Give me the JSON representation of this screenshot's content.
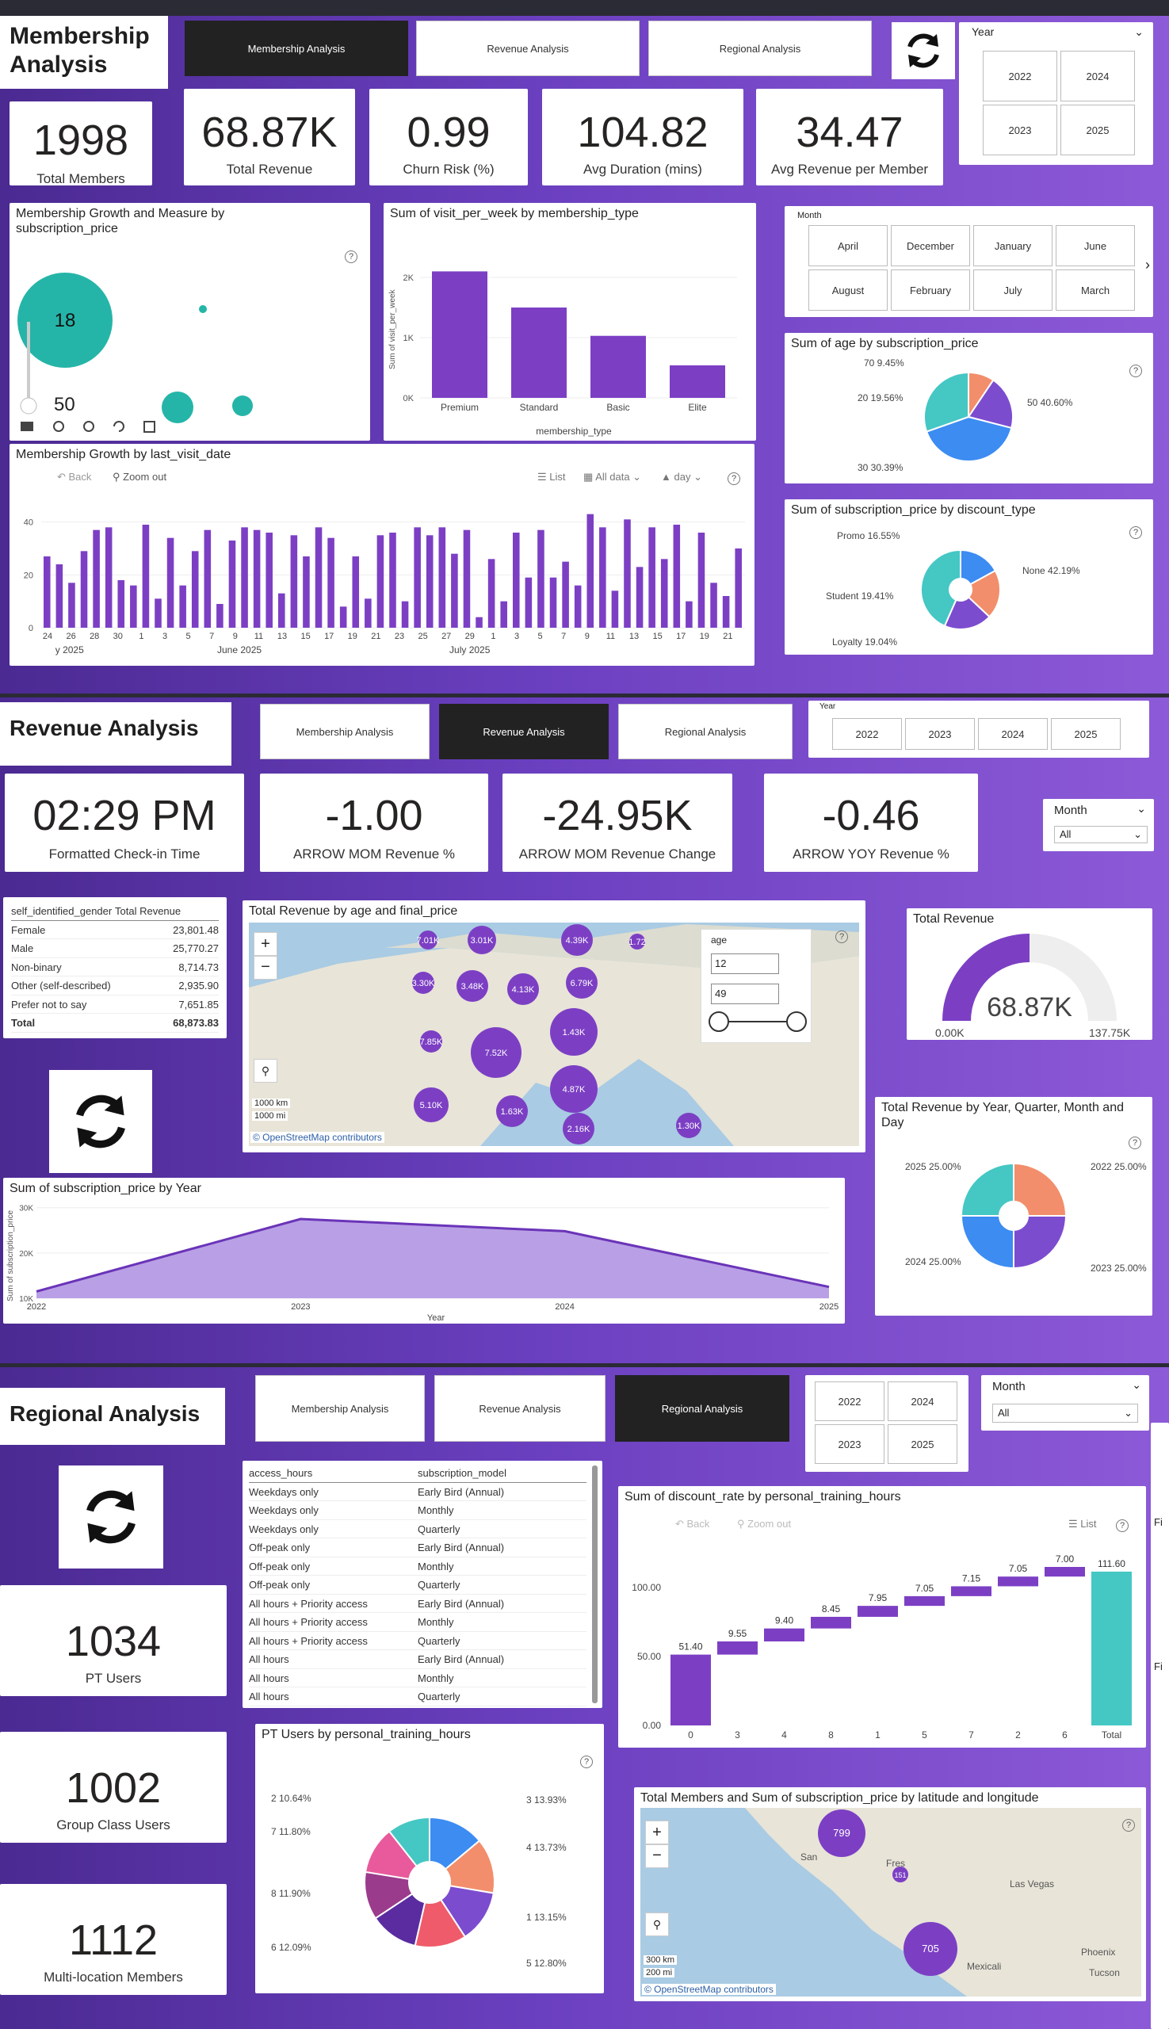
{
  "membership": {
    "title": "Membership Analysis",
    "tabs": [
      "Membership Analysis",
      "Revenue Analysis",
      "Regional Analysis"
    ],
    "year_label": "Year",
    "years": [
      "2022",
      "2024",
      "2023",
      "2025"
    ],
    "kpis": [
      {
        "value": "1998",
        "label": "Total Members"
      },
      {
        "value": "68.87K",
        "label": "Total Revenue"
      },
      {
        "value": "0.99",
        "label": "Churn Risk (%)"
      },
      {
        "value": "104.82",
        "label": "Avg Duration (mins)"
      },
      {
        "value": "34.47",
        "label": "Avg Revenue per Member"
      }
    ],
    "growth_measure": {
      "title": "Membership Growth and Measure by subscription_price",
      "big_value": "18",
      "small_value": "50"
    },
    "visits": {
      "title": "Sum of visit_per_week by membership_type",
      "ylabel": "Sum of visit_per_week",
      "xlabel": "membership_type"
    },
    "month_label": "Month",
    "months": [
      "April",
      "December",
      "January",
      "June",
      "August",
      "February",
      "July",
      "March"
    ],
    "age_pie": {
      "title": "Sum of age by subscription_price",
      "labels": [
        "70 9.45%",
        "20 19.56%",
        "50 40.60%",
        "30 30.39%"
      ]
    },
    "discount_donut": {
      "title": "Sum of subscription_price by discount_type",
      "labels": [
        "Promo 16.55%",
        "Student 19.41%",
        "Loyalty 19.04%",
        "None 42.19%"
      ]
    },
    "timeline": {
      "title": "Membership Growth by last_visit_date",
      "back": "Back",
      "zoom_out": "Zoom out",
      "list": "List",
      "all_data": "All data",
      "day": "day",
      "y_ticks": [
        "40",
        "20",
        "0"
      ],
      "x_ticks": [
        "24",
        "26",
        "28",
        "30",
        "1",
        "3",
        "5",
        "7",
        "9",
        "11",
        "13",
        "15",
        "17",
        "19",
        "21",
        "23",
        "25",
        "27",
        "29",
        "1",
        "3",
        "5",
        "7",
        "9",
        "11",
        "13",
        "15",
        "17",
        "19",
        "21"
      ],
      "month_labels": [
        "y 2025",
        "June 2025",
        "July 2025"
      ]
    }
  },
  "revenue": {
    "title": "Revenue Analysis",
    "tabs": [
      "Membership Analysis",
      "Revenue Analysis",
      "Regional Analysis"
    ],
    "year_label": "Year",
    "years": [
      "2022",
      "2023",
      "2024",
      "2025"
    ],
    "kpis": [
      {
        "value": "02:29 PM",
        "label": "Formatted Check-in Time"
      },
      {
        "value": "-1.00",
        "label": "ARROW MOM Revenue %"
      },
      {
        "value": "-24.95K",
        "label": "ARROW MOM Revenue Change"
      },
      {
        "value": "-0.46",
        "label": "ARROW YOY Revenue %"
      }
    ],
    "month_label": "Month",
    "month_value": "All",
    "gender_table": {
      "headers": [
        "self_identified_gender",
        "Total Revenue"
      ],
      "rows": [
        [
          "Female",
          "23,801.48"
        ],
        [
          "Male",
          "25,770.27"
        ],
        [
          "Non-binary",
          "8,714.73"
        ],
        [
          "Other (self-described)",
          "2,935.90"
        ],
        [
          "Prefer not to say",
          "7,651.85"
        ],
        [
          "Total",
          "68,873.83"
        ]
      ]
    },
    "map": {
      "title": "Total Revenue by age and final_price",
      "age_label": "age",
      "age_min": "12",
      "age_max": "49",
      "bubbles": [
        "7.01K",
        "3.01K",
        "4.39K",
        "1.72",
        "3.30K",
        "3.48K",
        "4.13K",
        "6.79K",
        "1.43K",
        "7.85K",
        "7.52K",
        "4.87K",
        "5.10K",
        "1.63K",
        "2.16K",
        "1.30K"
      ],
      "scale1": "1000 km",
      "scale2": "1000 mi",
      "credit": "© OpenStreetMap contributors"
    },
    "gauge": {
      "title": "Total Revenue",
      "value": "68.87K",
      "min": "0.00K",
      "max": "137.75K",
      "fraction": 0.5
    },
    "area": {
      "title": "Sum of subscription_price by Year",
      "ylabel": "Sum of subscription_price",
      "xlabel": "Year",
      "y_ticks": [
        "30K",
        "20K",
        "10K"
      ],
      "x": [
        "2022",
        "2023",
        "2024",
        "2025"
      ],
      "values": [
        11500,
        27500,
        24800,
        12500
      ]
    },
    "quarter_donut": {
      "title": "Total Revenue by Year, Quarter, Month and Day",
      "labels": [
        "2025 25.00%",
        "2022 25.00%",
        "2024 25.00%",
        "2023 25.00%"
      ]
    }
  },
  "regional": {
    "title": "Regional Analysis",
    "tabs": [
      "Membership Analysis",
      "Revenue Analysis",
      "Regional Analysis"
    ],
    "years": [
      "2022",
      "2024",
      "2023",
      "2025"
    ],
    "month_label": "Month",
    "month_value": "All",
    "kpis": [
      {
        "value": "1034",
        "label": "PT Users"
      },
      {
        "value": "1002",
        "label": "Group Class Users"
      },
      {
        "value": "1112",
        "label": "Multi-location Members"
      }
    ],
    "access_table": {
      "headers": [
        "access_hours",
        "subscription_model"
      ],
      "rows": [
        [
          "Weekdays only",
          "Early Bird (Annual)"
        ],
        [
          "Weekdays only",
          "Monthly"
        ],
        [
          "Weekdays only",
          "Quarterly"
        ],
        [
          "Off-peak only",
          "Early Bird (Annual)"
        ],
        [
          "Off-peak only",
          "Monthly"
        ],
        [
          "Off-peak only",
          "Quarterly"
        ],
        [
          "All hours + Priority access",
          "Early Bird (Annual)"
        ],
        [
          "All hours + Priority access",
          "Monthly"
        ],
        [
          "All hours + Priority access",
          "Quarterly"
        ],
        [
          "All hours",
          "Early Bird (Annual)"
        ],
        [
          "All hours",
          "Monthly"
        ],
        [
          "All hours",
          "Quarterly"
        ]
      ]
    },
    "pt_pie": {
      "title": "PT Users by personal_training_hours",
      "labels": [
        "2 10.64%",
        "7 11.80%",
        "8 11.90%",
        "6 12.09%",
        "3 13.93%",
        "4 13.73%",
        "1 13.15%",
        "5 12.80%"
      ]
    },
    "map": {
      "title": "Total Members and Sum of subscription_price by latitude and longitude",
      "bubbles": [
        "799",
        "151",
        "705"
      ],
      "places": [
        "San",
        "Fres",
        "Las Vegas",
        "Phoenix",
        "Tucson",
        "Mexicali"
      ],
      "scale1": "300 km",
      "scale2": "200 mi",
      "credit": "© OpenStreetMap contributors"
    },
    "waterfall": {
      "title": "Sum of discount_rate by personal_training_hours",
      "back": "Back",
      "zoom_out": "Zoom out",
      "list": "List",
      "y_ticks": [
        "100.00",
        "50.00",
        "0.00"
      ],
      "total_label": "Total",
      "total_value": "111.60"
    },
    "side_labels": [
      "Fi",
      "Fi"
    ]
  },
  "chart_data": [
    {
      "type": "bar",
      "title": "Sum of visit_per_week by membership_type",
      "categories": [
        "Premium",
        "Standard",
        "Basic",
        "Elite"
      ],
      "values": [
        2100,
        1500,
        1030,
        540
      ],
      "ylabel": "Sum of visit_per_week",
      "xlabel": "membership_type",
      "y_ticks": [
        "2K",
        "1K",
        "0K"
      ],
      "ylim": [
        0,
        2500
      ]
    },
    {
      "type": "bar",
      "title": "Membership Growth by last_visit_date",
      "values": [
        27,
        24,
        17,
        29,
        37,
        38,
        18,
        16,
        39,
        11,
        34,
        16,
        29,
        37,
        9,
        33,
        38,
        37,
        36,
        13,
        35,
        27,
        38,
        34,
        8,
        27,
        11,
        35,
        36,
        10,
        38,
        35,
        38,
        28,
        37,
        4,
        26,
        10,
        36,
        19,
        37,
        19,
        25,
        16,
        43,
        38,
        14,
        41,
        23,
        38,
        26,
        39,
        10,
        36,
        17,
        12,
        30
      ],
      "ylim": [
        0,
        45
      ]
    },
    {
      "type": "pie",
      "title": "Sum of age by subscription_price",
      "labels": [
        "70",
        "20",
        "50",
        "30"
      ],
      "values": [
        9.45,
        19.56,
        40.6,
        30.39
      ],
      "colors": [
        "#f28e6b",
        "#7c4ccf",
        "#3c8cf2",
        "#45c7c4"
      ]
    },
    {
      "type": "pie",
      "title": "Sum of subscription_price by discount_type",
      "labels": [
        "Promo",
        "Student",
        "Loyalty",
        "None"
      ],
      "values": [
        16.55,
        19.41,
        19.04,
        42.19
      ],
      "colors": [
        "#3c8cf2",
        "#f28e6b",
        "#7c4ccf",
        "#45c7c4"
      ]
    },
    {
      "type": "area",
      "title": "Sum of subscription_price by Year",
      "x": [
        "2022",
        "2023",
        "2024",
        "2025"
      ],
      "values": [
        11500,
        27500,
        24800,
        12500
      ],
      "ylim": [
        10000,
        31000
      ]
    },
    {
      "type": "pie",
      "title": "Total Revenue by Year, Quarter, Month and Day",
      "labels": [
        "2025",
        "2022",
        "2024",
        "2023"
      ],
      "values": [
        25,
        25,
        25,
        25
      ],
      "colors": [
        "#f28e6b",
        "#7c4ccf",
        "#3c8cf2",
        "#45c7c4"
      ]
    },
    {
      "type": "pie",
      "title": "PT Users by personal_training_hours",
      "labels": [
        "3",
        "4",
        "1",
        "5",
        "6",
        "8",
        "7",
        "2"
      ],
      "values": [
        13.93,
        13.73,
        13.15,
        12.8,
        12.09,
        11.9,
        11.8,
        10.64
      ],
      "colors": [
        "#3c8cf2",
        "#f28e6b",
        "#7c4ccf",
        "#ef5b6a",
        "#5a2ca0",
        "#9b3b8c",
        "#e85a9b",
        "#45c7c4"
      ]
    },
    {
      "type": "bar",
      "title": "Sum of discount_rate by personal_training_hours",
      "categories": [
        "0",
        "3",
        "4",
        "8",
        "1",
        "5",
        "7",
        "2",
        "6",
        "Total"
      ],
      "values": [
        51.4,
        9.55,
        9.4,
        8.45,
        7.95,
        7.05,
        7.15,
        7.05,
        7,
        111.6
      ],
      "labels": [
        "51.40",
        "9.55",
        "9.40",
        "8.45",
        "7.95",
        "7.05",
        "7.15",
        "7.05",
        "7.00",
        "111.60"
      ],
      "ylim": [
        0,
        115
      ]
    }
  ]
}
